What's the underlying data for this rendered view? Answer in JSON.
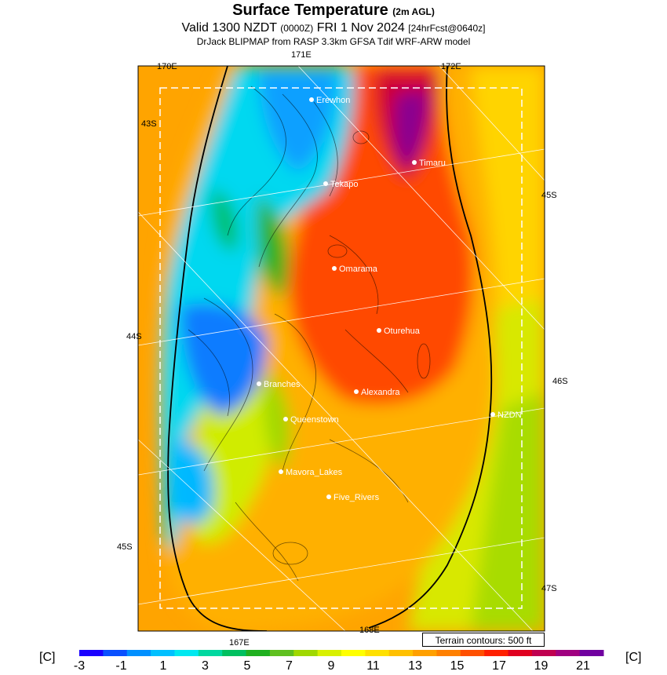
{
  "header": {
    "title": "Surface Temperature",
    "title_suffix": "(2m AGL)",
    "valid_prefix": "Valid 1300 NZDT",
    "valid_utc": "(0000Z)",
    "valid_date": "FRI 1 Nov 2024",
    "forecast_tag": "[24hrFcst@0640z]",
    "model_line": "DrJack BLIPMAP from RASP 3.3km GFSA Tdif WRF-ARW model"
  },
  "axis_labels": {
    "top_left": "170E",
    "top_mid": "171E",
    "top_right": "172E",
    "left_1": "43S",
    "left_2": "44S",
    "left_3": "45S",
    "right_1": "45S",
    "right_2": "46S",
    "right_3": "47S",
    "bottom_mid": "167E",
    "bottom_right": "168E"
  },
  "places": [
    {
      "name": "Erewhon"
    },
    {
      "name": "Timaru"
    },
    {
      "name": "Tekapo"
    },
    {
      "name": "Omarama"
    },
    {
      "name": "Oturehua"
    },
    {
      "name": "Branches"
    },
    {
      "name": "Alexandra"
    },
    {
      "name": "NZDN"
    },
    {
      "name": "Queenstown"
    },
    {
      "name": "Mavora_Lakes"
    },
    {
      "name": "Five_Rivers"
    }
  ],
  "terrain_note": "Terrain contours: 500 ft",
  "colorbar": {
    "unit_left": "[C]",
    "unit_right": "[C]",
    "ticks": [
      "-3",
      "-1",
      "1",
      "3",
      "5",
      "7",
      "9",
      "11",
      "13",
      "15",
      "17",
      "19",
      "21"
    ],
    "colors": [
      "#1a00ff",
      "#0a50ff",
      "#0090ff",
      "#00c0ff",
      "#00e8f0",
      "#00d8a0",
      "#00c060",
      "#20b020",
      "#60c020",
      "#a0d800",
      "#d8f000",
      "#ffff00",
      "#ffe000",
      "#ffc000",
      "#ffa000",
      "#ff8000",
      "#ff5000",
      "#ff2000",
      "#e00020",
      "#c00050",
      "#a00080",
      "#7000a0"
    ]
  }
}
